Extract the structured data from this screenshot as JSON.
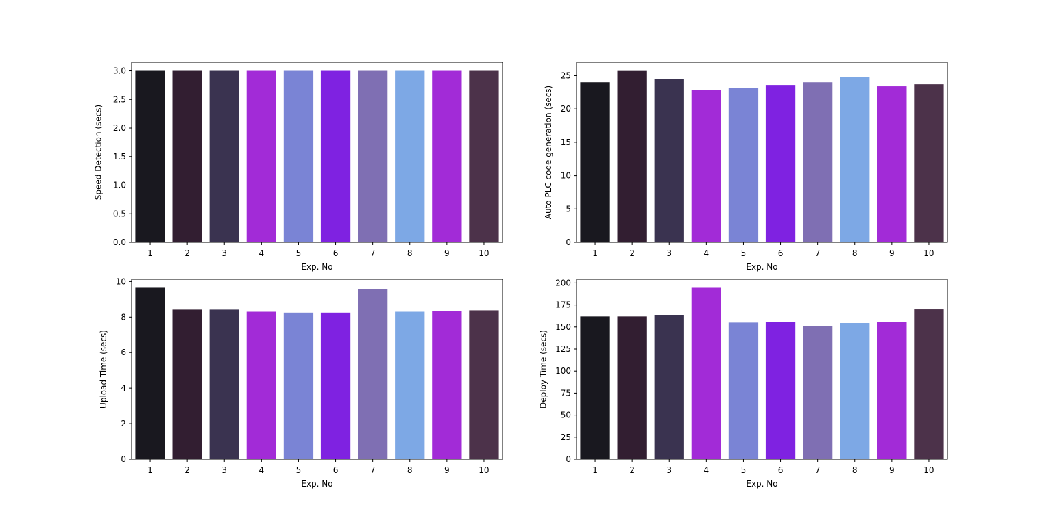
{
  "chart_data": [
    {
      "type": "bar",
      "categories": [
        "1",
        "2",
        "3",
        "4",
        "5",
        "6",
        "7",
        "8",
        "9",
        "10"
      ],
      "values": [
        3.0,
        3.0,
        3.0,
        3.0,
        3.0,
        3.0,
        3.0,
        3.0,
        3.0,
        3.0
      ],
      "xlabel": "Exp. No",
      "ylabel": "Speed Detection (secs)",
      "ylim": [
        0,
        3.15
      ],
      "yticks": [
        0.0,
        0.5,
        1.0,
        1.5,
        2.0,
        2.5,
        3.0
      ],
      "ytick_labels": [
        "0.0",
        "0.5",
        "1.0",
        "1.5",
        "2.0",
        "2.5",
        "3.0"
      ],
      "grid": false
    },
    {
      "type": "bar",
      "categories": [
        "1",
        "2",
        "3",
        "4",
        "5",
        "6",
        "7",
        "8",
        "9",
        "10"
      ],
      "values": [
        24.0,
        25.7,
        24.5,
        22.8,
        23.2,
        23.6,
        24.0,
        24.8,
        23.4,
        23.7
      ],
      "xlabel": "Exp. No",
      "ylabel": "Auto PLC code generation (secs)",
      "ylim": [
        0,
        27.0
      ],
      "yticks": [
        0,
        5,
        10,
        15,
        20,
        25
      ],
      "ytick_labels": [
        "0",
        "5",
        "10",
        "15",
        "20",
        "25"
      ],
      "grid": false
    },
    {
      "type": "bar",
      "categories": [
        "1",
        "2",
        "3",
        "4",
        "5",
        "6",
        "7",
        "8",
        "9",
        "10"
      ],
      "values": [
        9.65,
        8.42,
        8.42,
        8.3,
        8.25,
        8.25,
        9.58,
        8.3,
        8.35,
        8.38
      ],
      "xlabel": "Exp. No",
      "ylabel": "Upload Time (secs)",
      "ylim": [
        0,
        10.13
      ],
      "yticks": [
        0,
        2,
        4,
        6,
        8,
        10
      ],
      "ytick_labels": [
        "0",
        "2",
        "4",
        "6",
        "8",
        "10"
      ],
      "grid": false
    },
    {
      "type": "bar",
      "categories": [
        "1",
        "2",
        "3",
        "4",
        "5",
        "6",
        "7",
        "8",
        "9",
        "10"
      ],
      "values": [
        162,
        162,
        163.5,
        194.5,
        155,
        156,
        151,
        154.5,
        156,
        170
      ],
      "xlabel": "Exp. No",
      "ylabel": "Deploy Time (secs)",
      "ylim": [
        0,
        204.2
      ],
      "yticks": [
        0,
        25,
        50,
        75,
        100,
        125,
        150,
        175,
        200
      ],
      "ytick_labels": [
        "0",
        "25",
        "50",
        "75",
        "100",
        "125",
        "150",
        "175",
        "200"
      ],
      "grid": false
    }
  ],
  "palette": [
    "#19181f",
    "#321e31",
    "#3a3350",
    "#a22bd7",
    "#7a84d5",
    "#7f22e1",
    "#7f6fb3",
    "#7da8e5",
    "#a22bd7",
    "#4c324a"
  ]
}
